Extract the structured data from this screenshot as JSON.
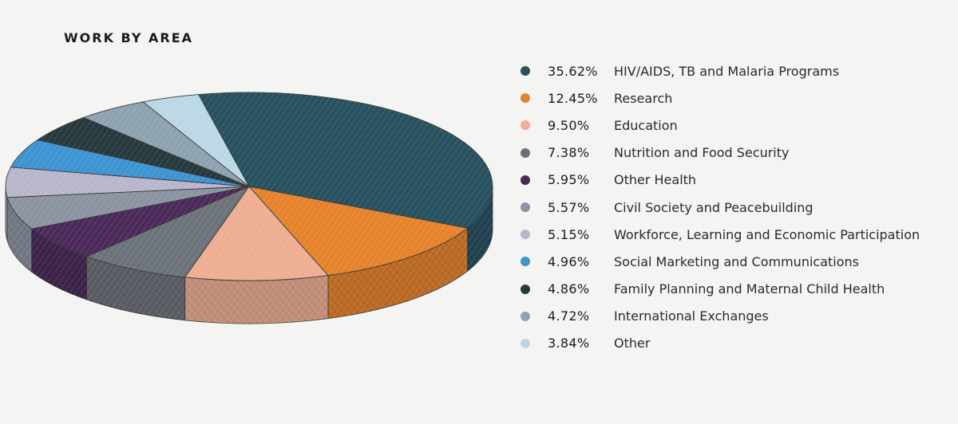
{
  "chart_data": {
    "type": "pie",
    "title": "WORK BY AREA",
    "legend_position": "right",
    "slices": [
      {
        "value": 35.62,
        "value_label": "35.62%",
        "label": "HIV/AIDS, TB and Malaria Programs",
        "color": "#27515f"
      },
      {
        "value": 12.45,
        "value_label": "12.45%",
        "label": "Research",
        "color": "#e5832c"
      },
      {
        "value": 9.5,
        "value_label": "9.50%",
        "label": "Education",
        "color": "#eeae93"
      },
      {
        "value": 7.38,
        "value_label": "7.38%",
        "label": "Nutrition and Food Security",
        "color": "#6c7279"
      },
      {
        "value": 5.95,
        "value_label": "5.95%",
        "label": "Other Health",
        "color": "#4b2a5a"
      },
      {
        "value": 5.57,
        "value_label": "5.57%",
        "label": "Civil Society and Peacebuilding",
        "color": "#8c93a1"
      },
      {
        "value": 5.15,
        "value_label": "5.15%",
        "label": "Workforce, Learning and Economic Participation",
        "color": "#b9b6cc"
      },
      {
        "value": 4.96,
        "value_label": "4.96%",
        "label": "Social Marketing and Communications",
        "color": "#3e93d1"
      },
      {
        "value": 4.86,
        "value_label": "4.86%",
        "label": "Family Planning and Maternal Child Health",
        "color": "#27393d"
      },
      {
        "value": 4.72,
        "value_label": "4.72%",
        "label": "International Exchanges",
        "color": "#8ea3b0"
      },
      {
        "value": 3.84,
        "value_label": "3.84%",
        "label": "Other",
        "color": "#bcd8e6"
      }
    ]
  }
}
